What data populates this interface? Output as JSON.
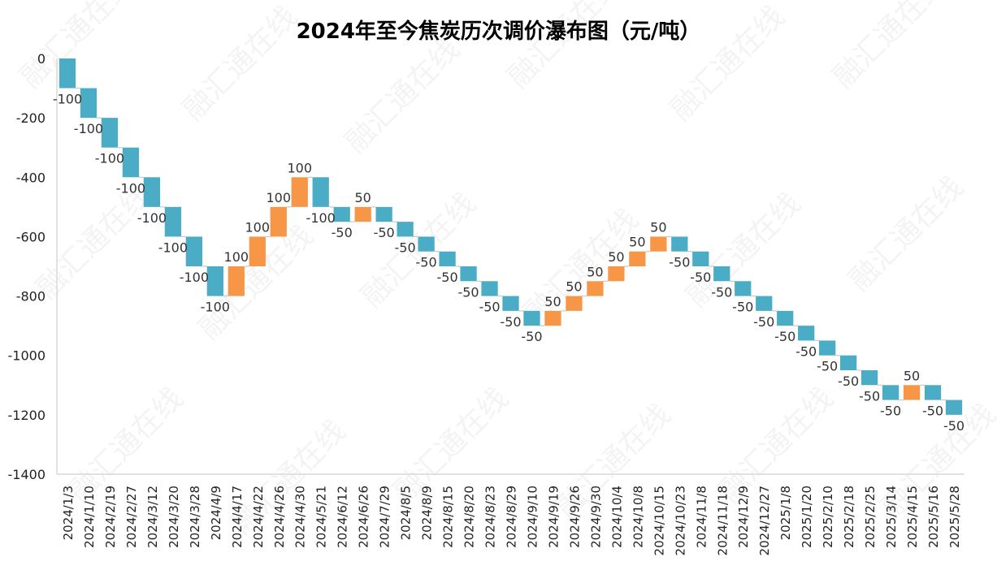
{
  "chart_data": {
    "type": "bar",
    "subtype": "waterfall",
    "title": "2024年至今焦炭历次调价瀑布图（元/吨）",
    "watermark": "融汇通在线",
    "ylim": [
      -1400,
      0
    ],
    "yticks": [
      0,
      -200,
      -400,
      -600,
      -800,
      -1000,
      -1200,
      -1400
    ],
    "ytick_labels": [
      "0",
      "-200",
      "-400",
      "-600",
      "-800",
      "-1000",
      "-1200",
      "-1400"
    ],
    "categories": [
      "2024/1/3",
      "2024/1/10",
      "2024/2/19",
      "2024/2/27",
      "2024/3/12",
      "2024/3/20",
      "2024/3/28",
      "2024/4/9",
      "2024/4/17",
      "2024/4/22",
      "2024/4/26",
      "2024/4/30",
      "2024/5/21",
      "2024/6/12",
      "2024/6/26",
      "2024/7/29",
      "2024/8/5",
      "2024/8/9",
      "2024/8/15",
      "2024/8/20",
      "2024/8/23",
      "2024/8/29",
      "2024/9/10",
      "2024/9/19",
      "2024/9/26",
      "2024/9/30",
      "2024/10/4",
      "2024/10/8",
      "2024/10/15",
      "2024/10/23",
      "2024/11/8",
      "2024/11/18",
      "2024/12/9",
      "2024/12/27",
      "2025/1/8",
      "2025/1/20",
      "2025/2/10",
      "2025/2/18",
      "2025/2/25",
      "2025/3/14",
      "2025/4/15",
      "2025/5/16",
      "2025/5/28"
    ],
    "values": [
      -100,
      -100,
      -100,
      -100,
      -100,
      -100,
      -100,
      -100,
      100,
      100,
      100,
      100,
      -100,
      -50,
      50,
      -50,
      -50,
      -50,
      -50,
      -50,
      -50,
      -50,
      -50,
      50,
      50,
      50,
      50,
      50,
      50,
      -50,
      -50,
      -50,
      -50,
      -50,
      -50,
      -50,
      -50,
      -50,
      -50,
      -50,
      50,
      -50,
      -50
    ],
    "data_labels": [
      "-100",
      "-100",
      "-100",
      "-100",
      "-100",
      "-100",
      "-100",
      "-100",
      "100",
      "100",
      "100",
      "100",
      "-100",
      "-50",
      "50",
      "-50",
      "-50",
      "-50",
      "-50",
      "-50",
      "-50",
      "-50",
      "-50",
      "50",
      "50",
      "50",
      "50",
      "50",
      "50",
      "-50",
      "-50",
      "-50",
      "-50",
      "-50",
      "-50",
      "-50",
      "-50",
      "-50",
      "-50",
      "-50",
      "50",
      "-50",
      "-50"
    ],
    "colors": {
      "decrease": "#4BACC6",
      "increase": "#F79646",
      "axis": "#D9D9D9",
      "connector": "#C8C8C8"
    },
    "grid": false,
    "legend": "none"
  }
}
